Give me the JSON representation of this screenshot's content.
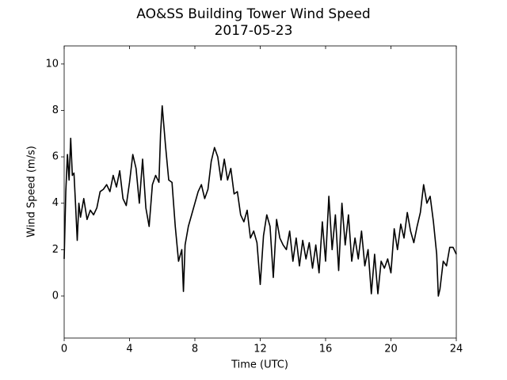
{
  "chart_data": {
    "type": "line",
    "title": "AO&SS Building Tower Wind Speed",
    "subtitle": "2017-05-23",
    "x_label": "Time (UTC)",
    "y_label": "Wind Speed (m/s)",
    "xlim": [
      0,
      24
    ],
    "xticks": [
      0,
      4,
      8,
      12,
      16,
      20,
      24
    ],
    "ylim": [
      -1.81,
      10.78
    ],
    "yticks": [
      0,
      2,
      4,
      6,
      8,
      10
    ],
    "grid": false,
    "series": [
      {
        "name": "Wind Speed",
        "color": "#000000",
        "x": [
          0,
          0.1,
          0.2,
          0.3,
          0.4,
          0.5,
          0.6,
          0.7,
          0.8,
          0.9,
          1.0,
          1.2,
          1.4,
          1.6,
          1.8,
          2.0,
          2.2,
          2.4,
          2.6,
          2.8,
          3.0,
          3.2,
          3.4,
          3.6,
          3.8,
          4.0,
          4.2,
          4.4,
          4.6,
          4.8,
          5.0,
          5.2,
          5.4,
          5.6,
          5.8,
          5.9,
          6.0,
          6.2,
          6.4,
          6.6,
          6.8,
          7.0,
          7.2,
          7.3,
          7.4,
          7.6,
          7.8,
          8.0,
          8.2,
          8.4,
          8.6,
          8.8,
          9.0,
          9.2,
          9.4,
          9.6,
          9.8,
          10.0,
          10.2,
          10.4,
          10.6,
          10.8,
          11.0,
          11.2,
          11.4,
          11.6,
          11.8,
          12.0,
          12.2,
          12.4,
          12.6,
          12.8,
          13.0,
          13.2,
          13.4,
          13.6,
          13.8,
          14.0,
          14.2,
          14.4,
          14.6,
          14.8,
          15.0,
          15.2,
          15.4,
          15.6,
          15.8,
          16.0,
          16.2,
          16.4,
          16.6,
          16.8,
          17.0,
          17.2,
          17.4,
          17.6,
          17.8,
          18.0,
          18.2,
          18.4,
          18.6,
          18.8,
          19.0,
          19.2,
          19.4,
          19.6,
          19.8,
          20.0,
          20.2,
          20.4,
          20.6,
          20.8,
          21.0,
          21.2,
          21.4,
          21.6,
          21.8,
          22.0,
          22.2,
          22.4,
          22.6,
          22.8,
          22.9,
          23.0,
          23.2,
          23.4,
          23.6,
          23.8,
          24.0
        ],
        "values": [
          1.6,
          4.5,
          6.1,
          5.0,
          6.8,
          5.2,
          5.3,
          3.9,
          2.4,
          4.0,
          3.4,
          4.2,
          3.3,
          3.7,
          3.5,
          3.8,
          4.5,
          4.6,
          4.8,
          4.5,
          5.2,
          4.7,
          5.4,
          4.2,
          3.9,
          4.9,
          6.1,
          5.5,
          4.0,
          5.9,
          3.8,
          3.0,
          4.8,
          5.2,
          4.9,
          7.0,
          8.2,
          6.5,
          5.0,
          4.9,
          3.0,
          1.5,
          2.0,
          0.2,
          2.2,
          3.0,
          3.5,
          4.0,
          4.5,
          4.8,
          4.2,
          4.6,
          5.8,
          6.4,
          6.0,
          5.0,
          5.9,
          5.0,
          5.5,
          4.4,
          4.5,
          3.5,
          3.2,
          3.7,
          2.5,
          2.8,
          2.3,
          0.5,
          2.6,
          3.5,
          3.0,
          0.8,
          3.3,
          2.5,
          2.2,
          2.0,
          2.8,
          1.5,
          2.5,
          1.3,
          2.4,
          1.6,
          2.3,
          1.2,
          2.2,
          1.0,
          3.2,
          1.5,
          4.3,
          2.0,
          3.5,
          1.1,
          4.0,
          2.2,
          3.5,
          1.5,
          2.5,
          1.6,
          2.8,
          1.3,
          2.0,
          0.1,
          1.8,
          0.1,
          1.5,
          1.2,
          1.6,
          1.0,
          2.9,
          2.0,
          3.1,
          2.5,
          3.6,
          2.8,
          2.3,
          3.0,
          3.6,
          4.8,
          4.0,
          4.3,
          3.2,
          1.8,
          0.0,
          0.3,
          1.5,
          1.3,
          2.1,
          2.1,
          1.8
        ]
      }
    ]
  }
}
